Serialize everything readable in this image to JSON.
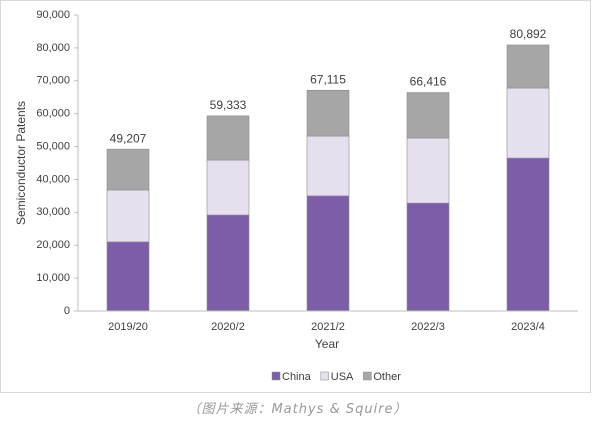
{
  "chart_data": {
    "type": "stacked-bar",
    "x_label": "Year",
    "y_label": "Semiconductor Patents",
    "categories": [
      "2019/20",
      "2020/2",
      "2021/2",
      "2022/3",
      "2023/4"
    ],
    "series": [
      {
        "name": "China",
        "color": "#7b5ea7",
        "values": [
          21000,
          29200,
          35000,
          32800,
          46500
        ]
      },
      {
        "name": "USA",
        "color": "#e6e0ee",
        "values": [
          15800,
          16700,
          18200,
          19800,
          21300
        ]
      },
      {
        "name": "Other",
        "color": "#a6a6a6",
        "values": [
          12407,
          13433,
          13915,
          13816,
          13092
        ]
      }
    ],
    "totals": [
      49207,
      59333,
      67115,
      66416,
      80892
    ],
    "total_labels": [
      "49,207",
      "59,333",
      "67,115",
      "66,416",
      "80,892"
    ],
    "ylim": [
      0,
      90000
    ],
    "yticks": [
      0,
      {
        "value": 10000,
        "label": "10,000"
      },
      {
        "value": 20000,
        "label": "20,000"
      },
      {
        "value": 30000,
        "label": "30,000"
      },
      {
        "value": 40000,
        "label": "40,000"
      },
      {
        "value": 50000,
        "label": "50,000"
      },
      {
        "value": 60000,
        "label": "60,000"
      },
      {
        "value": 70000,
        "label": "70,000"
      },
      {
        "value": 80000,
        "label": "80,000"
      },
      {
        "value": 90000,
        "label": "90,000"
      }
    ],
    "grid": false,
    "legend": "bottom"
  },
  "caption": "（图片来源：Mathys & Squire）"
}
